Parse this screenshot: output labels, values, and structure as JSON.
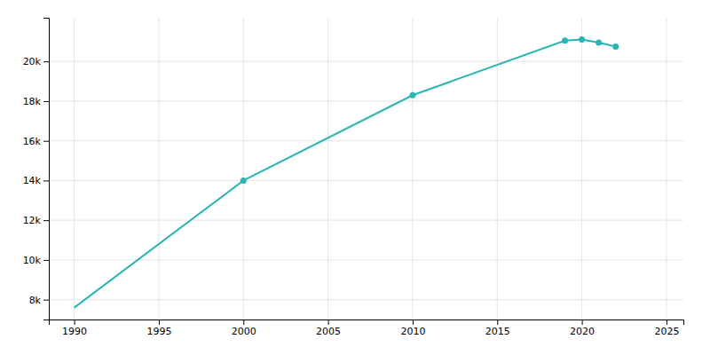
{
  "chart_data": {
    "type": "line",
    "x": [
      1990,
      2000,
      2010,
      2019,
      2020,
      2021,
      2022
    ],
    "series": [
      {
        "type": "line",
        "color": "#2ab5b5",
        "values": [
          7600,
          14000,
          18300,
          21050,
          21100,
          20950,
          20750
        ]
      },
      {
        "type": "scatter",
        "marker": "circle",
        "color": "#2ab5b5",
        "values": [
          null,
          14000,
          18300,
          21050,
          21100,
          20950,
          20750
        ]
      }
    ],
    "xlim": [
      1988.5,
      2026
    ],
    "xticks": [
      1990,
      1995,
      2000,
      2005,
      2010,
      2015,
      2020,
      2025
    ],
    "ylim": [
      7000,
      22200
    ],
    "yticks": [
      {
        "value": 8000,
        "label": "8k"
      },
      {
        "value": 10000,
        "label": "10k"
      },
      {
        "value": 12000,
        "label": "12k"
      },
      {
        "value": 14000,
        "label": "14k"
      },
      {
        "value": 16000,
        "label": "16k"
      },
      {
        "value": 18000,
        "label": "18k"
      },
      {
        "value": 20000,
        "label": "20k"
      }
    ],
    "grid": true
  }
}
